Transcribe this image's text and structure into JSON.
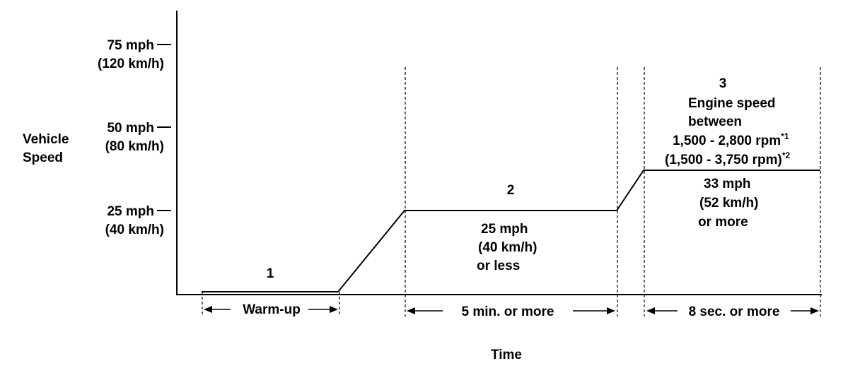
{
  "y_axis": {
    "label_line1": "Vehicle",
    "label_line2": "Speed",
    "ticks": [
      {
        "mph": "75 mph",
        "kmh": "(120 km/h)"
      },
      {
        "mph": "50 mph",
        "kmh": "(80 km/h)"
      },
      {
        "mph": "25 mph",
        "kmh": "(40 km/h)"
      }
    ]
  },
  "x_axis": {
    "label": "Time"
  },
  "phases": [
    {
      "number": "1",
      "duration": "Warm-up"
    },
    {
      "number": "2",
      "speed_line1": "25 mph",
      "speed_line2": "(40 km/h)",
      "speed_line3": "or less",
      "duration": "5 min. or more"
    },
    {
      "number": "3",
      "note_line1": "Engine speed",
      "note_line2": "between",
      "rpm_line1": "1,500 - 2,800 rpm",
      "rpm_line1_sup": "*1",
      "rpm_line2": "(1,500 - 3,750 rpm)",
      "rpm_line2_sup": "*2",
      "speed_line1": "33 mph",
      "speed_line2": "(52 km/h)",
      "speed_line3": "or more",
      "duration": "8 sec. or more"
    }
  ]
}
